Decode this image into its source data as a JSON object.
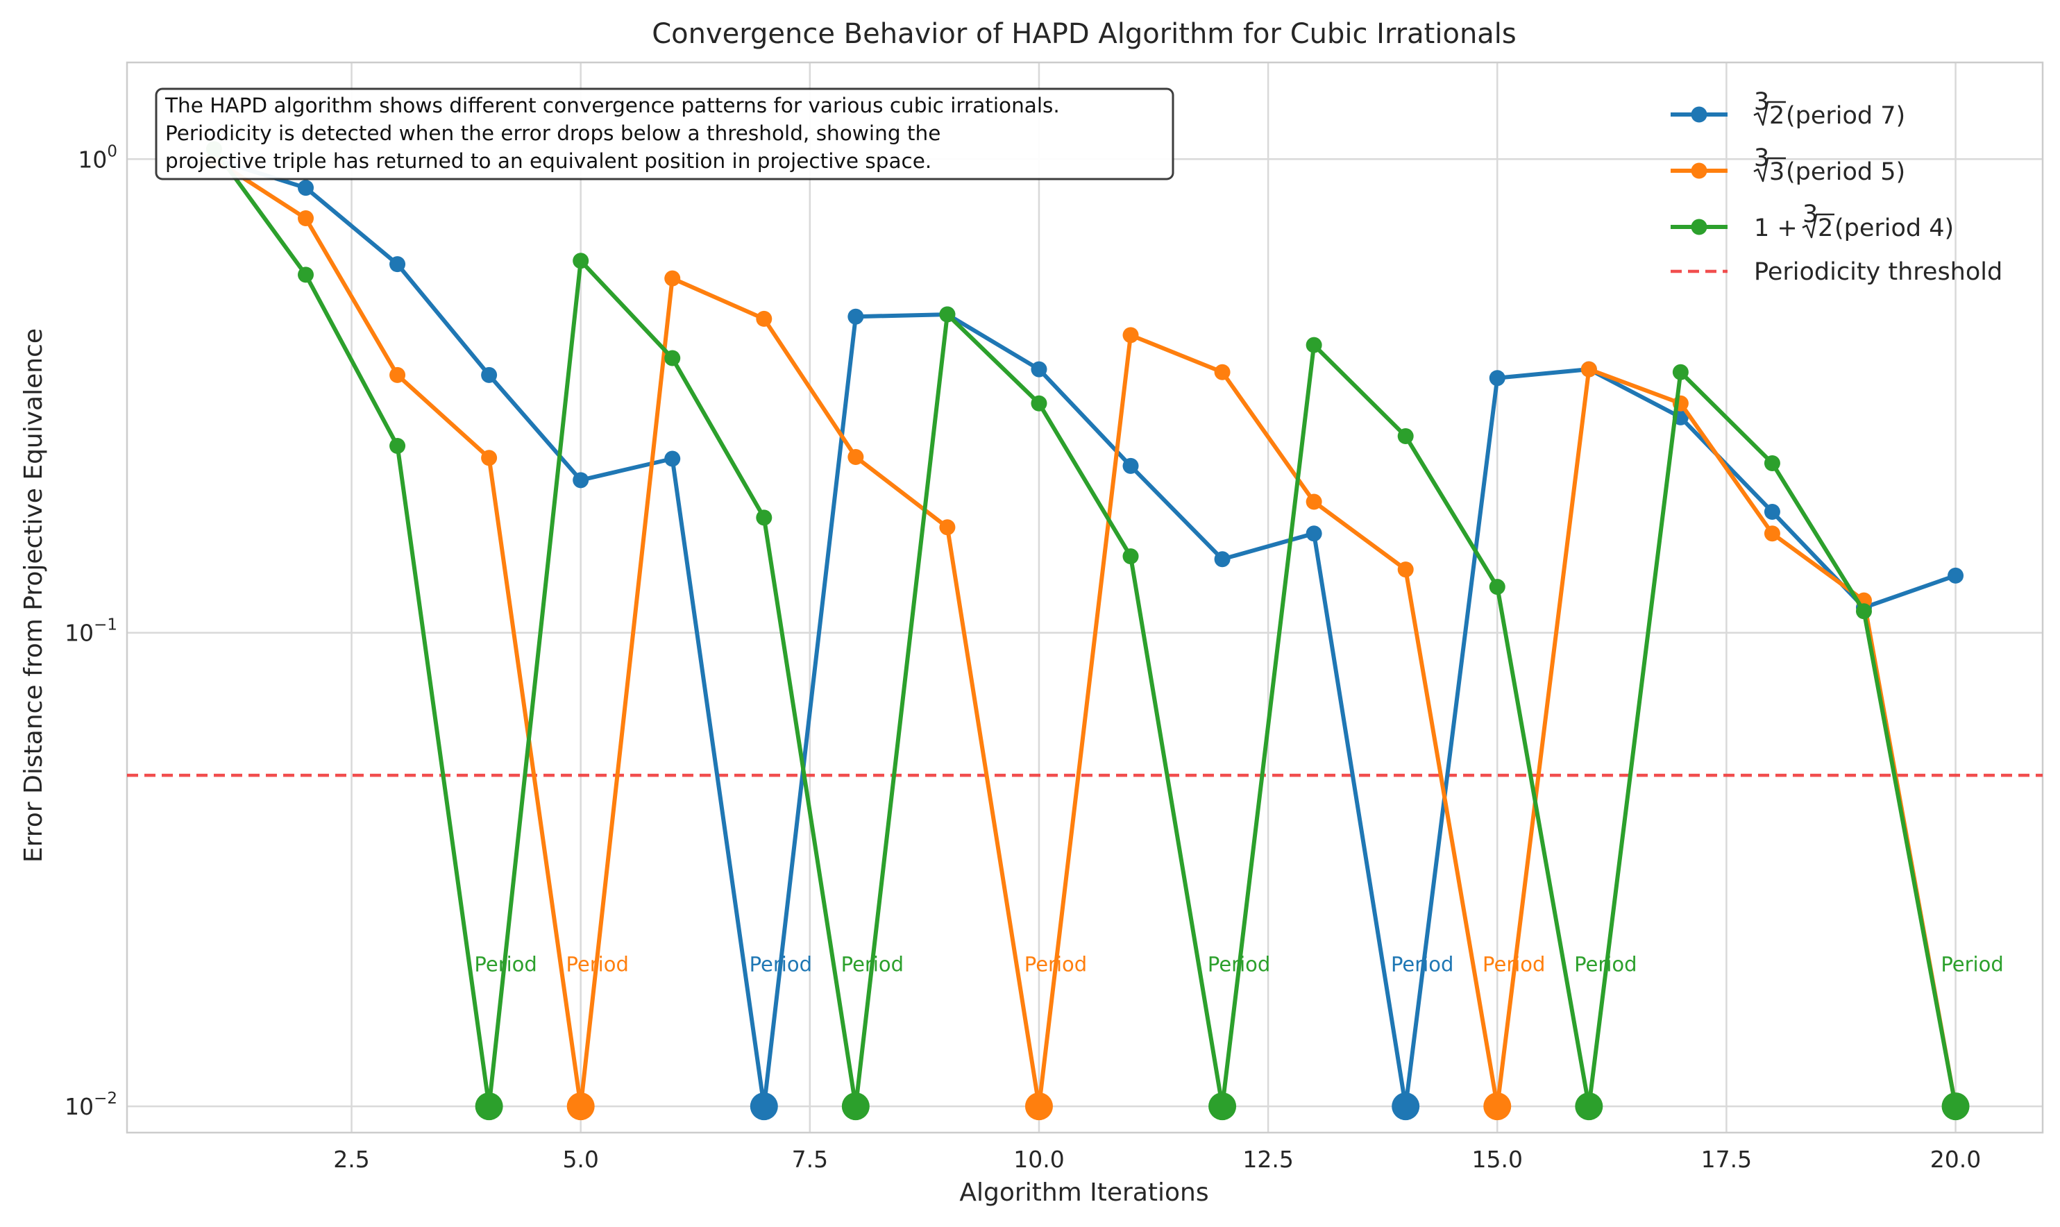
{
  "chart_data": {
    "type": "line",
    "title": "Convergence Behavior of HAPD Algorithm for Cubic Irrationals",
    "xlabel": "Algorithm Iterations",
    "ylabel": "Error Distance from Projective Equivalence",
    "xlim": [
      0.05,
      20.95
    ],
    "ylim": [
      0.0088,
      1.6
    ],
    "yscale": "log",
    "grid": true,
    "legend_position": "top-right",
    "x_ticks": [
      {
        "value": 2.5,
        "label": "2.5"
      },
      {
        "value": 5.0,
        "label": "5.0"
      },
      {
        "value": 7.5,
        "label": "7.5"
      },
      {
        "value": 10.0,
        "label": "10.0"
      },
      {
        "value": 12.5,
        "label": "12.5"
      },
      {
        "value": 15.0,
        "label": "15.0"
      },
      {
        "value": 17.5,
        "label": "17.5"
      },
      {
        "value": 20.0,
        "label": "20.0"
      }
    ],
    "y_ticks": [
      {
        "value": 1,
        "base": "10",
        "exp": "0"
      },
      {
        "value": 0.1,
        "base": "10",
        "exp": "−1"
      },
      {
        "value": 0.01,
        "base": "10",
        "exp": "−2"
      }
    ],
    "x": [
      1,
      2,
      3,
      4,
      5,
      6,
      7,
      8,
      9,
      10,
      11,
      12,
      13,
      14,
      15,
      16,
      17,
      18,
      19,
      20
    ],
    "series": [
      {
        "name": "∛2 (period 7)",
        "color": "#1f77b4",
        "values": [
          1.0,
          0.87,
          0.6,
          0.35,
          0.21,
          0.233,
          0.01,
          0.465,
          0.47,
          0.36,
          0.225,
          0.143,
          0.162,
          0.01,
          0.345,
          0.36,
          0.285,
          0.18,
          0.113,
          0.132
        ],
        "period_points": [
          7,
          14
        ]
      },
      {
        "name": "∛3 (period 5)",
        "color": "#ff7f0e",
        "values": [
          1.0,
          0.75,
          0.35,
          0.234,
          0.01,
          0.56,
          0.46,
          0.235,
          0.167,
          0.01,
          0.425,
          0.355,
          0.189,
          0.136,
          0.01,
          0.36,
          0.305,
          0.162,
          0.117,
          0.01
        ],
        "period_points": [
          5,
          10,
          15
        ]
      },
      {
        "name": "1 + ∛2 (period 4)",
        "color": "#2ca02c",
        "values": [
          1.05,
          0.57,
          0.248,
          0.01,
          0.61,
          0.38,
          0.175,
          0.01,
          0.47,
          0.305,
          0.145,
          0.01,
          0.405,
          0.26,
          0.125,
          0.01,
          0.355,
          0.228,
          0.111,
          0.01
        ],
        "period_points": [
          4,
          8,
          12,
          16,
          20
        ]
      }
    ],
    "threshold": {
      "name": "Periodicity threshold",
      "value": 0.05,
      "color": "#f03b3b"
    },
    "annotations": [
      {
        "text": "Period",
        "x": 4,
        "series": 2
      },
      {
        "text": "Period",
        "x": 5,
        "series": 1
      },
      {
        "text": "Period",
        "x": 7,
        "series": 0
      },
      {
        "text": "Period",
        "x": 8,
        "series": 2
      },
      {
        "text": "Period",
        "x": 10,
        "series": 1
      },
      {
        "text": "Period",
        "x": 12,
        "series": 2
      },
      {
        "text": "Period",
        "x": 14,
        "series": 0
      },
      {
        "text": "Period",
        "x": 15,
        "series": 1
      },
      {
        "text": "Period",
        "x": 16,
        "series": 2
      },
      {
        "text": "Period",
        "x": 20,
        "series": 2
      }
    ],
    "annotation_y": 0.02,
    "textbox": [
      "The HAPD algorithm shows different convergence patterns for various cubic irrationals.",
      "Periodicity is detected when the error drops below a threshold, showing the",
      "projective triple has returned to an equivalent position in projective space."
    ],
    "legend": [
      {
        "kind": "cbrt",
        "radicand": "2",
        "prefix": "",
        "suffix": " (period 7)"
      },
      {
        "kind": "cbrt",
        "radicand": "3",
        "prefix": "",
        "suffix": " (period 5)"
      },
      {
        "kind": "cbrt",
        "radicand": "2",
        "prefix": "1 + ",
        "suffix": " (period 4)"
      },
      {
        "kind": "dashed",
        "label": "Periodicity threshold"
      }
    ]
  }
}
